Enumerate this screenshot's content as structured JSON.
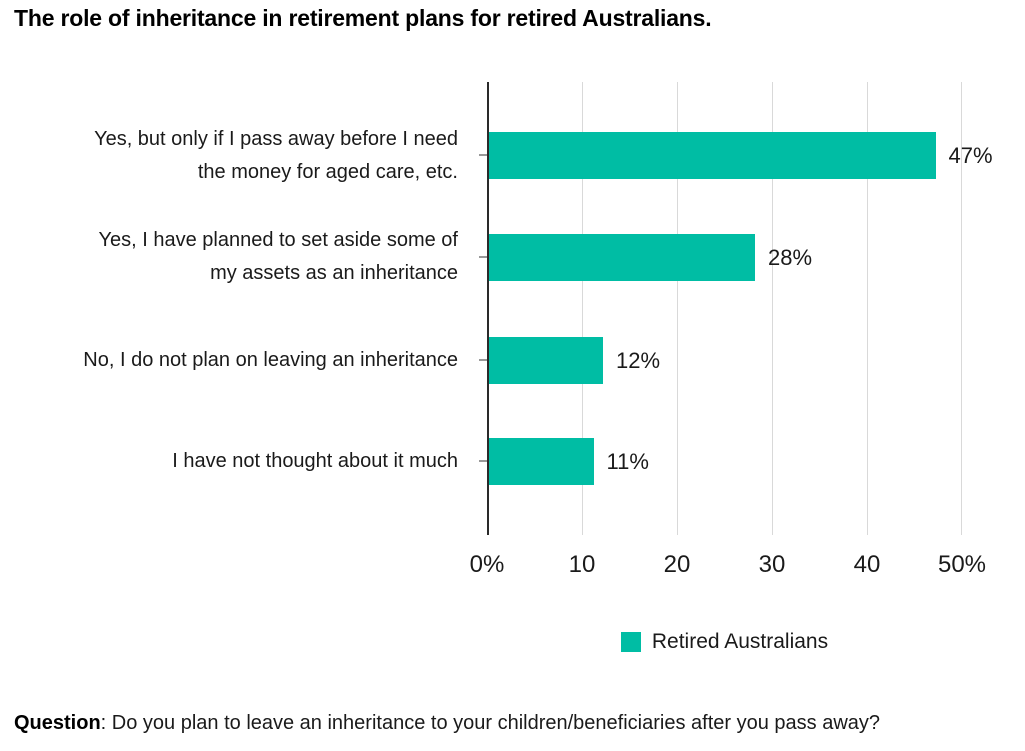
{
  "title": "The role of inheritance in retirement plans for retired Australians.",
  "colors": {
    "bar": "#00bda4",
    "axis": "#2a2a2a",
    "gridline": "#d9d9d9",
    "tick": "#999999"
  },
  "chart_data": {
    "type": "bar",
    "orientation": "horizontal",
    "title": "The role of inheritance in retirement plans for retired Australians.",
    "categories": [
      "Yes, but only if I pass away before I need\nthe money for aged care, etc.",
      "Yes, I have planned to set aside some of\nmy assets as an inheritance",
      "No, I do not plan on leaving an inheritance",
      "I have not thought about it much"
    ],
    "series": [
      {
        "name": "Retired Australians",
        "values": [
          47,
          28,
          12,
          11
        ]
      }
    ],
    "value_labels": [
      "47%",
      "28%",
      "12%",
      "11%"
    ],
    "xlim": [
      0,
      50
    ],
    "x_ticks": [
      "0%",
      "10",
      "20",
      "30",
      "40",
      "50%"
    ],
    "xlabel": "",
    "ylabel": "",
    "grid": "vertical-gridlines-every-10",
    "legend_position": "bottom-center",
    "bar_color": "#00bda4"
  },
  "legend": {
    "label": "Retired Australians"
  },
  "footer": {
    "question_label": "Question",
    "question_rest": ": Do you plan to leave an inheritance to your children/beneficiaries after you pass away?"
  }
}
